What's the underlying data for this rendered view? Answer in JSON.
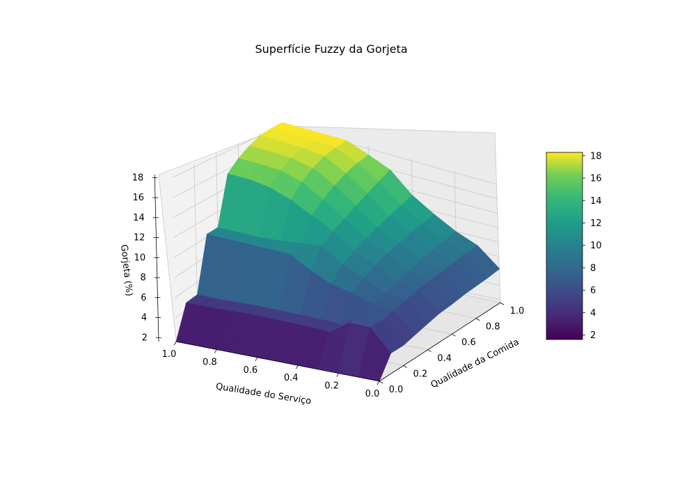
{
  "chart_data": {
    "type": "surface3d",
    "title": "Superfície Fuzzy da Gorjeta",
    "xlabel": "Qualidade do Serviço",
    "ylabel": "Qualidade da Comida",
    "zlabel": "Gorjeta (%)",
    "x_ticks": [
      "1.0",
      "0.8",
      "0.6",
      "0.4",
      "0.2",
      "0.0"
    ],
    "y_ticks": [
      "0.0",
      "0.2",
      "0.4",
      "0.6",
      "0.8",
      "1.0"
    ],
    "z_ticks": [
      "2",
      "4",
      "6",
      "8",
      "10",
      "12",
      "14",
      "16",
      "18"
    ],
    "colorbar_ticks": [
      "2",
      "4",
      "6",
      "8",
      "10",
      "12",
      "14",
      "16",
      "18"
    ],
    "colormap": "viridis",
    "zlim": [
      1.6,
      18.3
    ],
    "grid": true,
    "x": [
      0.0,
      0.1,
      0.2,
      0.3,
      0.4,
      0.5,
      0.6,
      0.7,
      0.8,
      0.9,
      1.0
    ],
    "y": [
      0.0,
      0.1,
      0.2,
      0.3,
      0.4,
      0.5,
      0.6,
      0.7,
      0.8,
      0.9,
      1.0
    ],
    "z_rows_by_service": [
      [
        1.6,
        3.9,
        3.9,
        4.3,
        4.7,
        5.1,
        5.3,
        5.6,
        5.8,
        6.0,
        6.3
      ],
      [
        1.6,
        6.3,
        6.3,
        6.6,
        7.0,
        7.4,
        7.7,
        8.0,
        8.3,
        8.6,
        8.8
      ],
      [
        1.6,
        6.3,
        6.3,
        6.8,
        7.3,
        7.8,
        8.3,
        8.8,
        9.2,
        9.6,
        10.0
      ],
      [
        1.6,
        4.8,
        4.8,
        7.5,
        8.5,
        9.2,
        9.8,
        10.3,
        10.8,
        11.2,
        11.6
      ],
      [
        1.6,
        4.9,
        4.9,
        8.0,
        9.5,
        10.3,
        11.0,
        11.6,
        12.2,
        12.8,
        13.4
      ],
      [
        1.6,
        4.9,
        4.9,
        9.0,
        11.0,
        12.0,
        12.8,
        13.6,
        14.4,
        15.2,
        16.0
      ],
      [
        1.6,
        4.9,
        4.9,
        10.3,
        10.8,
        13.2,
        14.4,
        15.4,
        16.2,
        16.8,
        17.2
      ],
      [
        1.6,
        4.9,
        4.9,
        10.3,
        10.5,
        14.4,
        15.8,
        16.8,
        17.6,
        18.0,
        18.3
      ],
      [
        1.6,
        4.8,
        4.8,
        10.3,
        10.3,
        15.2,
        16.5,
        17.3,
        17.9,
        18.2,
        18.3
      ],
      [
        1.6,
        4.7,
        4.7,
        10.3,
        10.3,
        15.5,
        16.6,
        17.4,
        18.0,
        18.2,
        18.3
      ],
      [
        1.6,
        4.7,
        4.7,
        10.3,
        10.3,
        15.5,
        16.6,
        17.4,
        18.0,
        18.2,
        18.3
      ]
    ]
  }
}
